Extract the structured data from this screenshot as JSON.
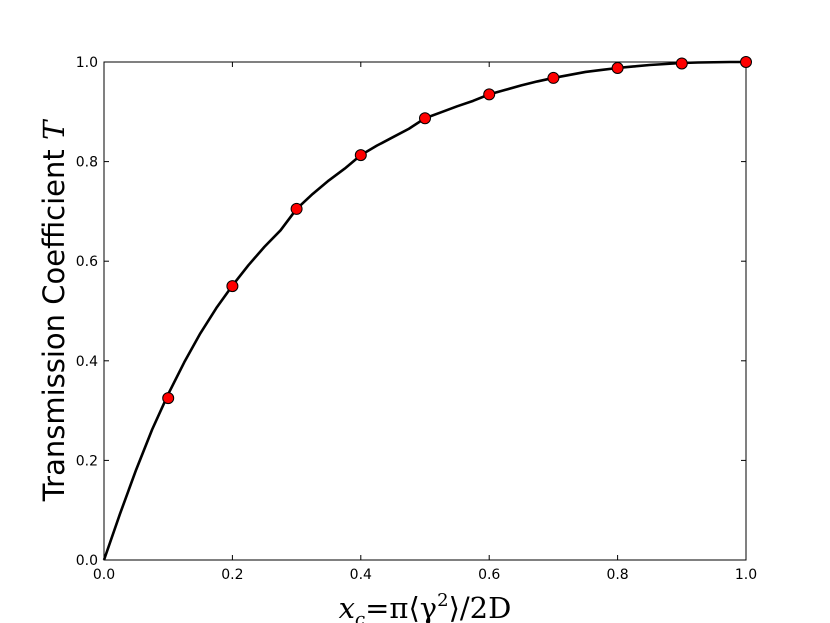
{
  "chart_data": {
    "type": "line",
    "title": "",
    "xlabel": {
      "x_var": "x",
      "x_sub": "c",
      "eq": "=π⟨γ",
      "sup": "2",
      "tail": "⟩/2D"
    },
    "ylabel": {
      "text": "Transmission Coefficient ",
      "symbol": "T"
    },
    "xlim": [
      0.0,
      1.0
    ],
    "ylim": [
      0.0,
      1.0
    ],
    "xticks": [
      "0.0",
      "0.2",
      "0.4",
      "0.6",
      "0.8",
      "1.0"
    ],
    "yticks": [
      "0.0",
      "0.2",
      "0.4",
      "0.6",
      "0.8",
      "1.0"
    ],
    "grid": false,
    "legend": "none",
    "series": [
      {
        "kind": "curve",
        "color": "#000000",
        "x": [
          0.0,
          0.025,
          0.05,
          0.075,
          0.1,
          0.125,
          0.15,
          0.175,
          0.2,
          0.225,
          0.25,
          0.275,
          0.3,
          0.325,
          0.35,
          0.375,
          0.4,
          0.425,
          0.45,
          0.475,
          0.5,
          0.525,
          0.55,
          0.575,
          0.6,
          0.625,
          0.65,
          0.675,
          0.7,
          0.725,
          0.75,
          0.775,
          0.8,
          0.825,
          0.85,
          0.875,
          0.9,
          0.925,
          0.95,
          0.975,
          1.0
        ],
        "y": [
          0.0,
          0.093,
          0.181,
          0.262,
          0.333,
          0.397,
          0.455,
          0.506,
          0.551,
          0.592,
          0.629,
          0.662,
          0.705,
          0.735,
          0.762,
          0.786,
          0.813,
          0.832,
          0.849,
          0.866,
          0.887,
          0.899,
          0.911,
          0.922,
          0.935,
          0.944,
          0.953,
          0.961,
          0.968,
          0.974,
          0.98,
          0.984,
          0.988,
          0.991,
          0.994,
          0.996,
          0.998,
          0.999,
          0.9995,
          1.0,
          1.0
        ]
      },
      {
        "kind": "markers",
        "color": "#ff0000",
        "edge": "#000000",
        "x": [
          0.1,
          0.2,
          0.3,
          0.4,
          0.5,
          0.6,
          0.7,
          0.8,
          0.9,
          1.0
        ],
        "y": [
          0.325,
          0.55,
          0.705,
          0.813,
          0.887,
          0.935,
          0.968,
          0.988,
          0.997,
          1.0
        ]
      }
    ]
  }
}
